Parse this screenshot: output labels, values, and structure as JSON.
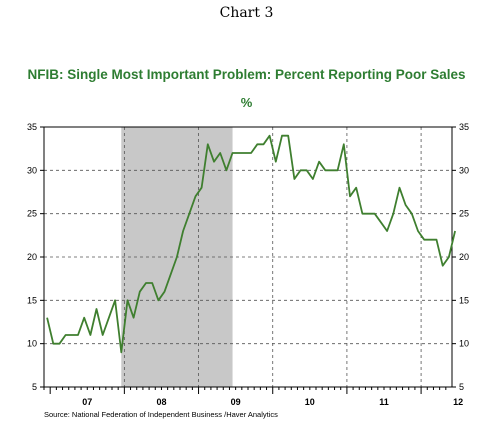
{
  "header": {
    "chart_label": "Chart 3"
  },
  "footer": {
    "source": "Source:  National Federation of Independent Business /Haver Analytics"
  },
  "chart_data": {
    "type": "line",
    "title": "NFIB: Single Most Important Problem: Percent Reporting Poor Sales",
    "subtitle": "%",
    "xlabel": "",
    "ylabel": "",
    "ylim": [
      5,
      35
    ],
    "yticks": [
      5,
      10,
      15,
      20,
      25,
      30,
      35
    ],
    "x_range_months": [
      "2006-12",
      "2012-02"
    ],
    "x_tick_labels": [
      "07",
      "08",
      "09",
      "10",
      "11",
      "12"
    ],
    "grid": true,
    "recession_shading": {
      "start": "2007-12",
      "end": "2009-06",
      "color": "#c8c8c8"
    },
    "series": [
      {
        "color": "#3f7f2f",
        "x": [
          "2006-12",
          "2007-01",
          "2007-02",
          "2007-03",
          "2007-04",
          "2007-05",
          "2007-06",
          "2007-07",
          "2007-08",
          "2007-09",
          "2007-10",
          "2007-11",
          "2007-12",
          "2008-01",
          "2008-02",
          "2008-03",
          "2008-04",
          "2008-05",
          "2008-06",
          "2008-07",
          "2008-08",
          "2008-09",
          "2008-10",
          "2008-11",
          "2008-12",
          "2009-01",
          "2009-02",
          "2009-03",
          "2009-04",
          "2009-05",
          "2009-06",
          "2009-07",
          "2009-08",
          "2009-09",
          "2009-10",
          "2009-11",
          "2009-12",
          "2010-01",
          "2010-02",
          "2010-03",
          "2010-04",
          "2010-05",
          "2010-06",
          "2010-07",
          "2010-08",
          "2010-09",
          "2010-10",
          "2010-11",
          "2010-12",
          "2011-01",
          "2011-02",
          "2011-03",
          "2011-04",
          "2011-05",
          "2011-06",
          "2011-07",
          "2011-08",
          "2011-09",
          "2011-10",
          "2011-11",
          "2011-12",
          "2012-01"
        ],
        "values": [
          13,
          10,
          10,
          11,
          11,
          11,
          13,
          11,
          14,
          11,
          13,
          15,
          9,
          15,
          13,
          16,
          17,
          17,
          15,
          16,
          18,
          20,
          23,
          25,
          27,
          28,
          33,
          31,
          32,
          30,
          32,
          32,
          32,
          32,
          33,
          33,
          34,
          31,
          34,
          34,
          29,
          30,
          30,
          29,
          31,
          30,
          30,
          30,
          33,
          27,
          28,
          25,
          25,
          25,
          24,
          23,
          25,
          28,
          26,
          25,
          23,
          22
        ]
      }
    ],
    "series_tail": {
      "x": [
        "2012-02",
        "2012-03",
        "2012-04",
        "2012-05",
        "2012-06"
      ],
      "values": [
        22,
        22,
        19,
        20,
        23
      ]
    }
  }
}
